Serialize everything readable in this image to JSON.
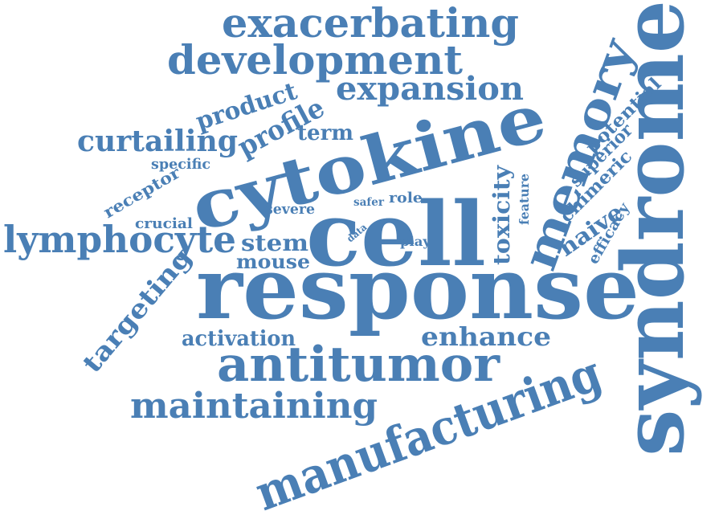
{
  "colors": {
    "background": "#ffffff",
    "text": "#4a7fb5"
  },
  "words": {
    "response": "response",
    "syndrome": "syndrome",
    "cell": "cell",
    "cytokine": "cytokine",
    "memory": "memory",
    "manufacturing": "manufacturing",
    "antitumor": "antitumor",
    "development": "development",
    "exacerbating": "exacerbating",
    "lymphocyte": "lymphocyte",
    "maintaining": "maintaining",
    "expansion": "expansion",
    "curtailing": "curtailing",
    "targeting": "targeting",
    "enhance": "enhance",
    "profile": "profile",
    "product": "product",
    "toxicity": "toxicity",
    "stem": "stem",
    "mouse": "mouse",
    "activation": "activation",
    "term": "term",
    "naive": "naive",
    "potential": "potential",
    "superior": "superior",
    "chimeric": "chimeric",
    "receptor": "receptor",
    "specific": "specific",
    "crucial": "crucial",
    "severe": "severe",
    "role": "role",
    "safer": "safer",
    "play": "play",
    "data": "data",
    "feature": "feature",
    "efficacy": "efficacy"
  }
}
